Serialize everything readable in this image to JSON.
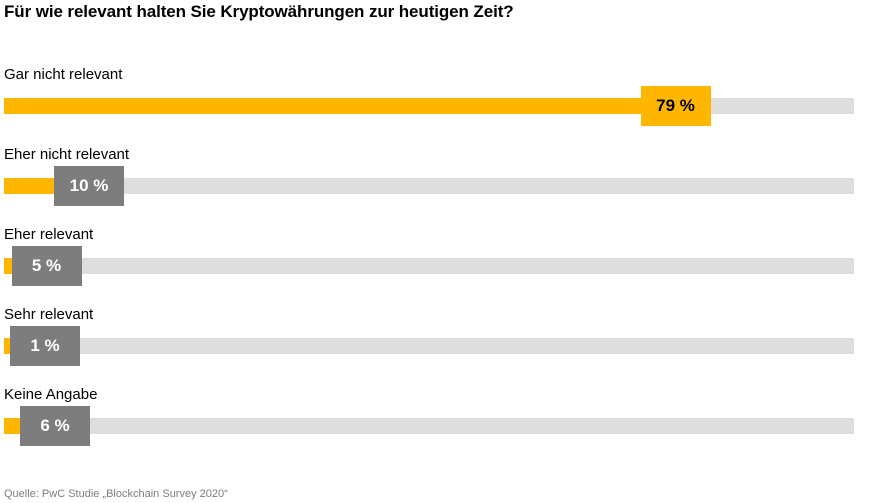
{
  "chart_data": {
    "type": "bar",
    "orientation": "horizontal",
    "title": "Für wie relevant halten Sie Kryptowährungen zur heutigen Zeit?",
    "categories": [
      "Gar nicht relevant",
      "Eher nicht relevant",
      "Eher relevant",
      "Sehr relevant",
      "Keine Angabe"
    ],
    "values": [
      79,
      10,
      5,
      1,
      6
    ],
    "value_labels": [
      "79 %",
      "10 %",
      "5 %",
      "1 %",
      "6 %"
    ],
    "xlim": [
      0,
      100
    ],
    "highlight_index": 0,
    "grid": false,
    "legend": "none",
    "source": "Quelle: PwC Studie „Blockchain Survey 2020“",
    "colors": {
      "bar_fill": "#ffb600",
      "track": "#dedede",
      "label_box": "#7d7d7d",
      "highlight_box": "#ffb600"
    }
  }
}
